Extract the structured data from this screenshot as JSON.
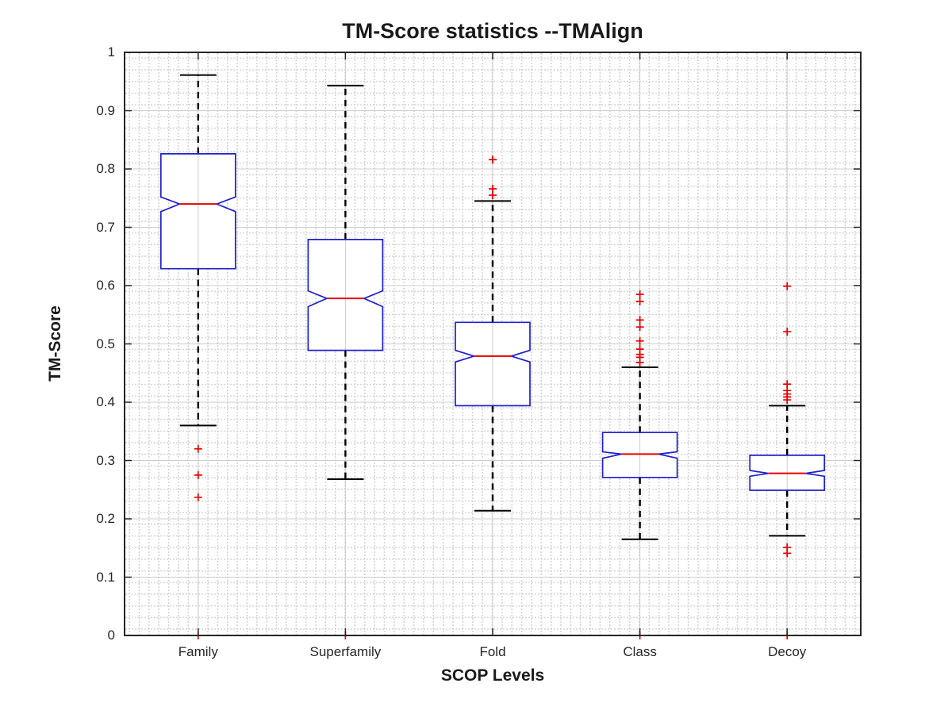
{
  "chart_data": {
    "type": "box",
    "title": "TM-Score statistics --TMAlign",
    "xlabel": "SCOP Levels",
    "ylabel": "TM-Score",
    "ylim": [
      0,
      1
    ],
    "yticks": [
      "0",
      "0.1",
      "0.2",
      "0.3",
      "0.4",
      "0.5",
      "0.6",
      "0.7",
      "0.8",
      "0.9",
      "1"
    ],
    "ytick_values": [
      0,
      0.1,
      0.2,
      0.3,
      0.4,
      0.5,
      0.6,
      0.7,
      0.8,
      0.9,
      1
    ],
    "categories": [
      "Family",
      "Superfamily",
      "Fold",
      "Class",
      "Decoy"
    ],
    "grid": "major and minor, both axes",
    "legend": null,
    "notched": true,
    "series": [
      {
        "name": "Family",
        "whisker_low": 0.36,
        "q1": 0.629,
        "median": 0.74,
        "q3": 0.826,
        "whisker_high": 0.961,
        "notch_low": 0.727,
        "notch_high": 0.752,
        "outliers": [
          0.32,
          0.275,
          0.237,
          0.0
        ]
      },
      {
        "name": "Superfamily",
        "whisker_low": 0.268,
        "q1": 0.489,
        "median": 0.578,
        "q3": 0.679,
        "whisker_high": 0.943,
        "notch_low": 0.564,
        "notch_high": 0.591,
        "outliers": [
          0.0
        ]
      },
      {
        "name": "Fold",
        "whisker_low": 0.214,
        "q1": 0.394,
        "median": 0.479,
        "q3": 0.537,
        "whisker_high": 0.745,
        "notch_low": 0.469,
        "notch_high": 0.489,
        "outliers": [
          0.816,
          0.766,
          0.755
        ]
      },
      {
        "name": "Class",
        "whisker_low": 0.165,
        "q1": 0.271,
        "median": 0.311,
        "q3": 0.348,
        "whisker_high": 0.46,
        "notch_low": 0.304,
        "notch_high": 0.315,
        "outliers": [
          0.585,
          0.573,
          0.541,
          0.529,
          0.505,
          0.491,
          0.482,
          0.477,
          0.468,
          0.0
        ]
      },
      {
        "name": "Decoy",
        "whisker_low": 0.171,
        "q1": 0.249,
        "median": 0.278,
        "q3": 0.309,
        "whisker_high": 0.394,
        "notch_low": 0.273,
        "notch_high": 0.283,
        "outliers": [
          0.599,
          0.521,
          0.431,
          0.42,
          0.414,
          0.409,
          0.404,
          0.151,
          0.141,
          0.0
        ]
      }
    ],
    "colors": {
      "box": "#2020c8",
      "median": "#e60000",
      "outlier": "#e60000",
      "whisker": "#000000",
      "grid_major": "#cccccc",
      "grid_minor": "#d4d4d4",
      "axis": "#262626",
      "text": "#262626"
    }
  }
}
